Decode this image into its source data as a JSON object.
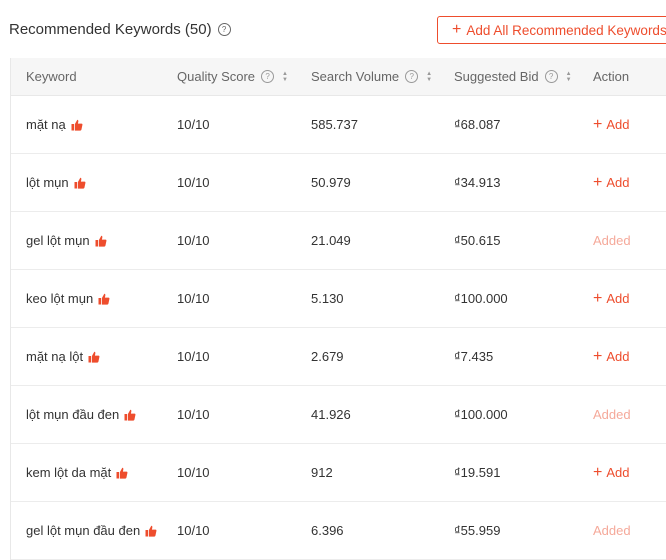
{
  "header": {
    "title": "Recommended Keywords (50)",
    "help_icon": "question-circle-icon",
    "add_all_label": "Add All Recommended Keywords"
  },
  "table": {
    "columns": [
      {
        "label": "Keyword",
        "help": false,
        "sortable": false
      },
      {
        "label": "Quality Score",
        "help": true,
        "sortable": true
      },
      {
        "label": "Search Volume",
        "help": true,
        "sortable": true
      },
      {
        "label": "Suggested Bid",
        "help": true,
        "sortable": true
      },
      {
        "label": "Action",
        "help": false,
        "sortable": false
      }
    ],
    "rows": [
      {
        "keyword": "mặt nạ",
        "quality": "10/10",
        "volume": "585.737",
        "bid": "₫68.087",
        "action": "Add",
        "added": false
      },
      {
        "keyword": "lột mụn",
        "quality": "10/10",
        "volume": "50.979",
        "bid": "₫34.913",
        "action": "Add",
        "added": false
      },
      {
        "keyword": "gel lột mụn",
        "quality": "10/10",
        "volume": "21.049",
        "bid": "₫50.615",
        "action": "Added",
        "added": true
      },
      {
        "keyword": "keo lột mụn",
        "quality": "10/10",
        "volume": "5.130",
        "bid": "₫100.000",
        "action": "Add",
        "added": false
      },
      {
        "keyword": "mặt nạ lột",
        "quality": "10/10",
        "volume": "2.679",
        "bid": "₫7.435",
        "action": "Add",
        "added": false
      },
      {
        "keyword": "lột mụn đầu đen",
        "quality": "10/10",
        "volume": "41.926",
        "bid": "₫100.000",
        "action": "Added",
        "added": true
      },
      {
        "keyword": "kem lột da mặt",
        "quality": "10/10",
        "volume": "912",
        "bid": "₫19.591",
        "action": "Add",
        "added": false
      },
      {
        "keyword": "gel lột mụn đầu đen",
        "quality": "10/10",
        "volume": "6.396",
        "bid": "₫55.959",
        "action": "Added",
        "added": true
      }
    ]
  },
  "colors": {
    "accent": "#ee4d2d",
    "added": "#f5a99a",
    "header_bg": "#f6f6f6"
  }
}
